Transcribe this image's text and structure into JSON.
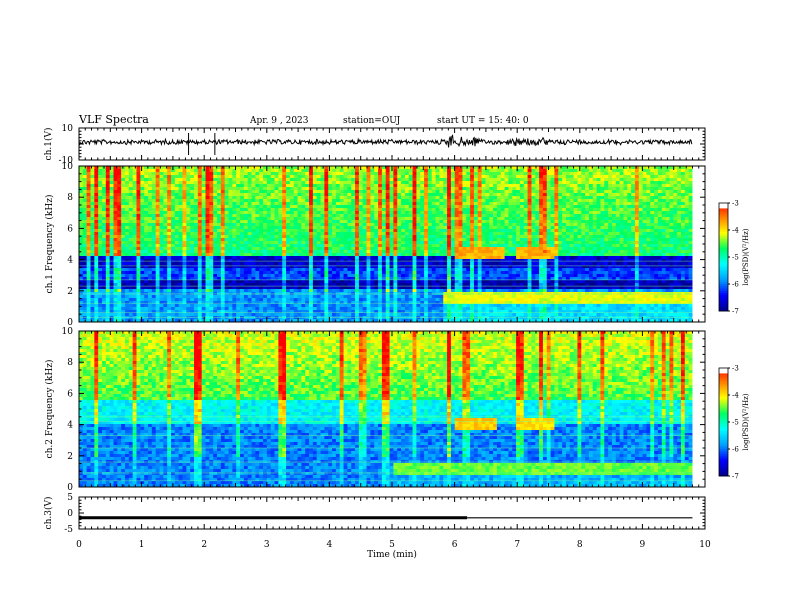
{
  "header": {
    "title": "VLF Spectra",
    "date": "Apr. 9 , 2023",
    "station": "station=OUJ",
    "start": "start UT = 15: 40: 0"
  },
  "colors": {
    "colormap": [
      "#00008b",
      "#0000ff",
      "#00a0ff",
      "#00ffff",
      "#00ff60",
      "#ffff00",
      "#ff8000",
      "#ff0000",
      "#ffffff"
    ],
    "trace": "#000000"
  },
  "chart_data": [
    {
      "type": "line",
      "name": "ch1-waveform",
      "ylabel": "ch.1(V)",
      "ylim": [
        -10,
        10
      ],
      "yticks": [
        "10",
        "-10"
      ],
      "note": "broadband waveform, amplitude near 0 V with bursts around 6 min"
    },
    {
      "type": "heatmap",
      "name": "ch1-spectrogram",
      "ylabel": "ch.1 Frequency (kHz)",
      "xlim": [
        0,
        10
      ],
      "ylim": [
        0,
        10
      ],
      "yticks": [
        "0",
        "2",
        "4",
        "6",
        "8",
        "10"
      ],
      "colorbar": {
        "label": "log(PSD)(V²/Hz)",
        "range": [
          -7,
          -3
        ],
        "ticks": [
          "-3",
          "-4",
          "-5",
          "-6",
          "-7"
        ]
      },
      "features": [
        {
          "x": [
            6.0,
            6.8
          ],
          "f": 4.4,
          "level": -3.8
        },
        {
          "x": [
            7.0,
            7.6
          ],
          "f": 4.4,
          "level": -3.8
        },
        {
          "x": [
            5.8,
            9.8
          ],
          "f": 1.5,
          "level": -4.2
        }
      ]
    },
    {
      "type": "heatmap",
      "name": "ch2-spectrogram",
      "ylabel": "ch.2 Frequency (kHz)",
      "xlim": [
        0,
        10
      ],
      "ylim": [
        0,
        10
      ],
      "yticks": [
        "0",
        "2",
        "4",
        "6",
        "8",
        "10"
      ],
      "colorbar": {
        "label": "log(PSD)(V²/Hz)",
        "range": [
          -7,
          -3
        ],
        "ticks": [
          "-3",
          "-4",
          "-5",
          "-6",
          "-7"
        ]
      },
      "features": [
        {
          "x": [
            6.0,
            6.7
          ],
          "f": 4.1,
          "level": -3.9
        },
        {
          "x": [
            7.0,
            7.6
          ],
          "f": 4.1,
          "level": -4.0
        },
        {
          "x": [
            5.0,
            9.8
          ],
          "f": 1.2,
          "level": -4.5
        }
      ]
    },
    {
      "type": "line",
      "name": "ch3",
      "ylabel": "ch.3(V)",
      "ylim": [
        -5,
        5
      ],
      "yticks": [
        "5",
        "0",
        "-5"
      ],
      "x": [
        0,
        6.2,
        6.2,
        9.8
      ],
      "y": [
        -1.5,
        -1.5,
        -1.5,
        -1.5
      ],
      "thick_until": 6.2
    }
  ],
  "xaxis": {
    "label": "Time (min)",
    "ticks": [
      "0",
      "1",
      "2",
      "3",
      "4",
      "5",
      "6",
      "7",
      "8",
      "9",
      "10"
    ]
  }
}
